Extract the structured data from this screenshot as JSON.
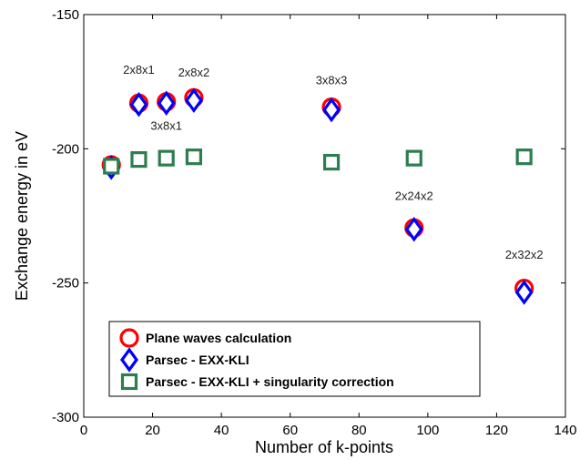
{
  "chart_data": {
    "type": "scatter",
    "title": "",
    "xlabel": "Number of k-points",
    "ylabel": "Exchange energy in eV",
    "xlim": [
      0,
      140
    ],
    "ylim": [
      -300,
      -150
    ],
    "xticks": [
      0,
      20,
      40,
      60,
      80,
      100,
      120,
      140
    ],
    "yticks": [
      -300,
      -250,
      -200,
      -150
    ],
    "grid": false,
    "legend_position": "bottom-left",
    "series": [
      {
        "name": "Plane waves calculation",
        "marker": "circle",
        "color": "#ff0000",
        "points": [
          {
            "x": 8,
            "y": -206
          },
          {
            "x": 16,
            "y": -183
          },
          {
            "x": 24,
            "y": -182.5
          },
          {
            "x": 32,
            "y": -181
          },
          {
            "x": 72,
            "y": -184.5
          },
          {
            "x": 96,
            "y": -229.5
          },
          {
            "x": 128,
            "y": -252
          }
        ]
      },
      {
        "name": "Parsec - EXX-KLI",
        "marker": "diamond",
        "color": "#0000ff",
        "points": [
          {
            "x": 8,
            "y": -207
          },
          {
            "x": 16,
            "y": -183.5
          },
          {
            "x": 24,
            "y": -183
          },
          {
            "x": 32,
            "y": -182
          },
          {
            "x": 72,
            "y": -185.5
          },
          {
            "x": 96,
            "y": -230
          },
          {
            "x": 128,
            "y": -253.5
          }
        ]
      },
      {
        "name": "Parsec - EXX-KLI + singularity correction",
        "marker": "square",
        "color": "#2e7d4f",
        "points": [
          {
            "x": 8,
            "y": -206.5
          },
          {
            "x": 16,
            "y": -204
          },
          {
            "x": 24,
            "y": -203.5
          },
          {
            "x": 32,
            "y": -203
          },
          {
            "x": 72,
            "y": -205
          },
          {
            "x": 96,
            "y": -203.5
          },
          {
            "x": 128,
            "y": -203
          }
        ]
      }
    ],
    "annotations": [
      {
        "text": "2x8x1",
        "x": 16,
        "y": -172
      },
      {
        "text": "2x8x2",
        "x": 32,
        "y": -173
      },
      {
        "text": "3x8x1",
        "x": 24,
        "y": -193
      },
      {
        "text": "3x8x3",
        "x": 72,
        "y": -176
      },
      {
        "text": "2x24x2",
        "x": 96,
        "y": -219
      },
      {
        "text": "2x32x2",
        "x": 128,
        "y": -241
      }
    ]
  }
}
